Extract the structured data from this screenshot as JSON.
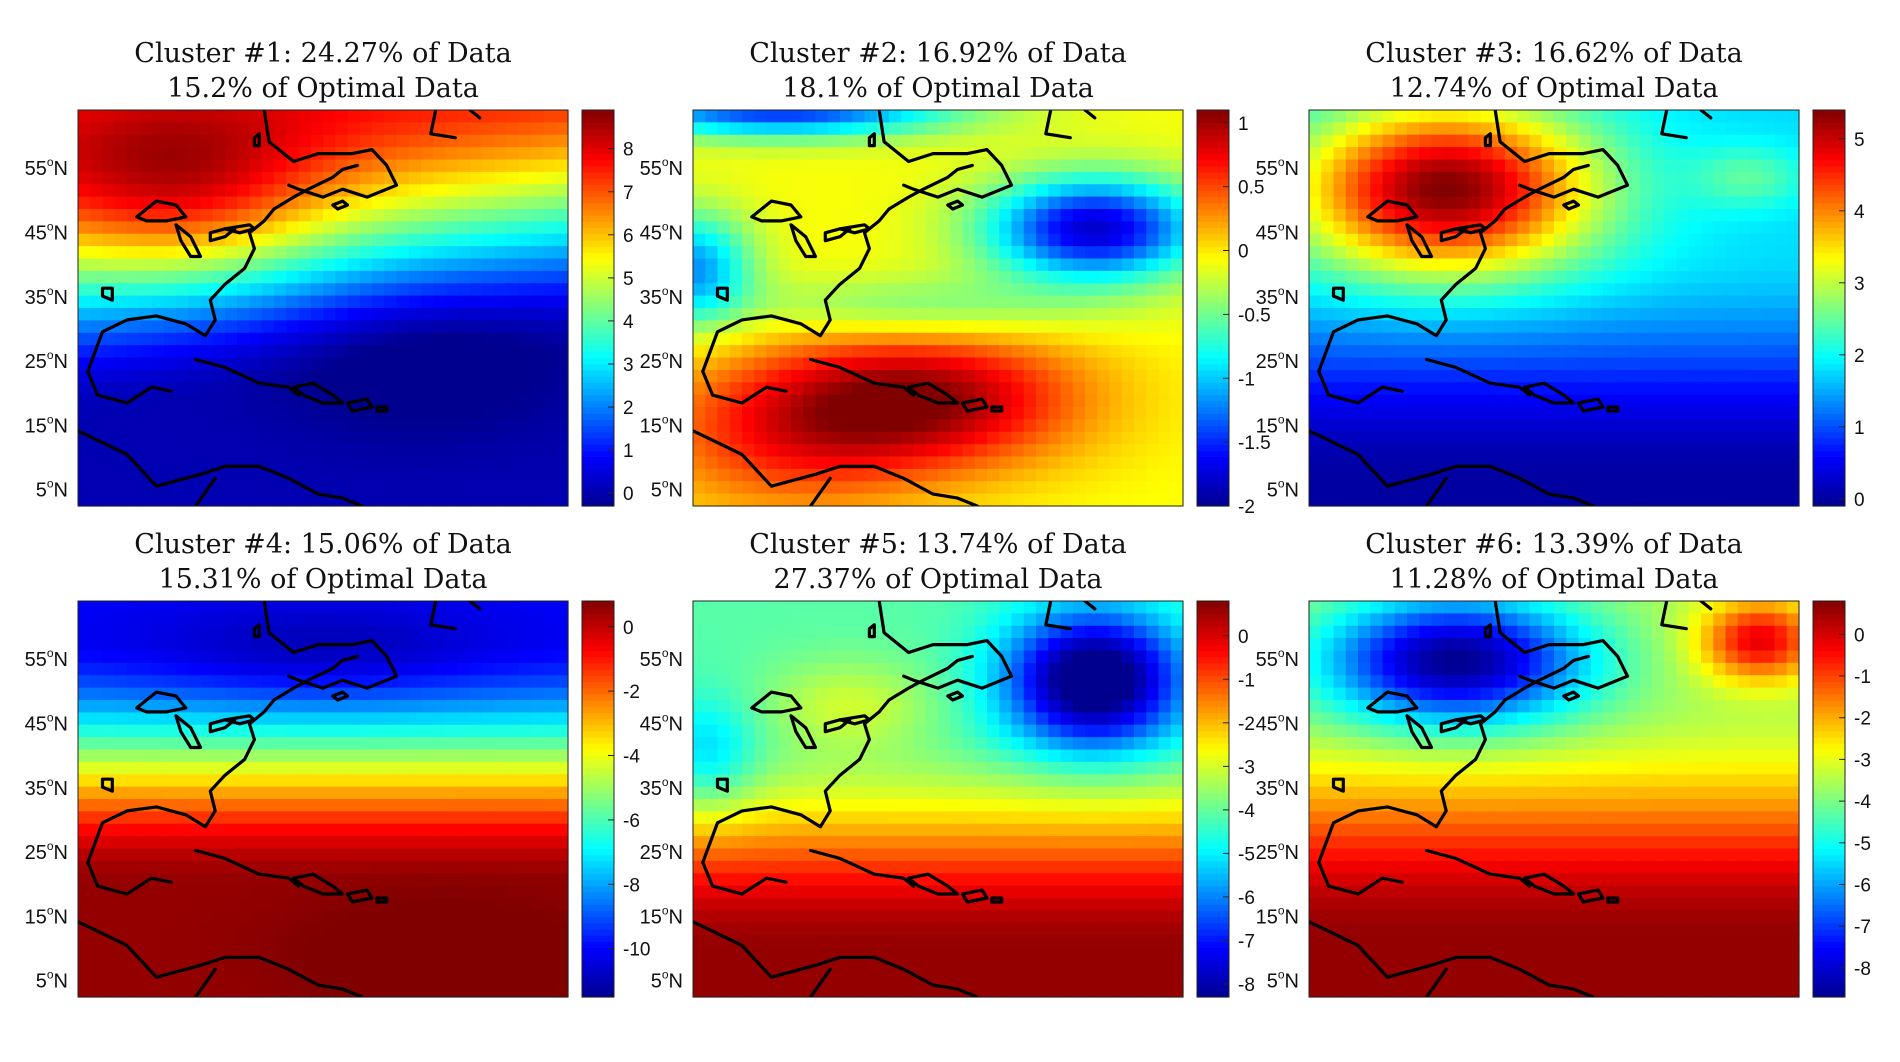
{
  "colormap": [
    "#00008F",
    "#0000FF",
    "#0080FF",
    "#00FFFF",
    "#80FF80",
    "#FFFF00",
    "#FF8000",
    "#FF0000",
    "#800000"
  ],
  "coastline_color": "#000000",
  "lat_ticks": [
    {
      "deg": "55",
      "sup": "o",
      "hem": "N"
    },
    {
      "deg": "45",
      "sup": "o",
      "hem": "N"
    },
    {
      "deg": "35",
      "sup": "o",
      "hem": "N"
    },
    {
      "deg": "25",
      "sup": "o",
      "hem": "N"
    },
    {
      "deg": "15",
      "sup": "o",
      "hem": "N"
    },
    {
      "deg": "5",
      "sup": "o",
      "hem": "N"
    }
  ],
  "chart_data": [
    {
      "type": "heatmap",
      "title_line1": "Cluster #1: 24.27% of Data",
      "title_line2": "15.2% of Optimal Data",
      "colorbar": {
        "min": -0.3,
        "max": 8.9,
        "ticks": [
          0,
          1,
          2,
          3,
          4,
          5,
          6,
          7,
          8
        ],
        "tick_labels": [
          "0",
          "1",
          "2",
          "3",
          "4",
          "5",
          "6",
          "7",
          "8"
        ]
      },
      "lat_range": [
        0,
        62
      ],
      "base_field": "lat_gradient_high_north",
      "features": [
        {
          "name": "max_northeast_us",
          "value": 8.9
        },
        {
          "name": "min_tropical_atlantic",
          "value": -0.3
        }
      ]
    },
    {
      "type": "heatmap",
      "title_line1": "Cluster #2: 16.92% of Data",
      "title_line2": "18.1% of Optimal Data",
      "colorbar": {
        "min": -2.0,
        "max": 1.1,
        "ticks": [
          -2,
          -1.5,
          -1,
          -0.5,
          0,
          0.5,
          1
        ],
        "tick_labels": [
          "-2",
          "-1.5",
          "-1",
          "-0.5",
          "0",
          "0.5",
          "1"
        ]
      },
      "lat_range": [
        0,
        62
      ],
      "base_field": "positive_south_negative_northeast",
      "features": [
        {
          "name": "max_caribbean",
          "value": 1.1
        },
        {
          "name": "min_north_atlantic",
          "value": -2.0
        }
      ]
    },
    {
      "type": "heatmap",
      "title_line1": "Cluster #3: 16.62% of Data",
      "title_line2": "12.74% of Optimal Data",
      "colorbar": {
        "min": -0.1,
        "max": 5.4,
        "ticks": [
          0,
          1,
          2,
          3,
          4,
          5
        ],
        "tick_labels": [
          "0",
          "1",
          "2",
          "3",
          "4",
          "5"
        ]
      },
      "lat_range": [
        0,
        62
      ],
      "base_field": "blob_northeast_us",
      "features": [
        {
          "name": "max_great_lakes",
          "value": 5.4
        },
        {
          "name": "min_tropical_atlantic",
          "value": -0.1
        }
      ]
    },
    {
      "type": "heatmap",
      "title_line1": "Cluster #4: 15.06% of Data",
      "title_line2": "15.31% of Optimal Data",
      "colorbar": {
        "min": -11.5,
        "max": 0.8,
        "ticks": [
          -10,
          -8,
          -6,
          -4,
          -2,
          0
        ],
        "tick_labels": [
          "-10",
          "-8",
          "-6",
          "-4",
          "-2",
          "0"
        ]
      },
      "lat_range": [
        0,
        62
      ],
      "base_field": "lat_gradient_low_north",
      "features": [
        {
          "name": "min_northeast_canada",
          "value": -11.5
        },
        {
          "name": "max_tropical_atlantic",
          "value": 0.8
        }
      ]
    },
    {
      "type": "heatmap",
      "title_line1": "Cluster #5: 13.74% of Data",
      "title_line2": "27.37% of Optimal Data",
      "colorbar": {
        "min": -8.3,
        "max": 0.8,
        "ticks": [
          -8,
          -7,
          -6,
          -5,
          -4,
          -3,
          -2,
          -1,
          0
        ],
        "tick_labels": [
          "-8",
          "-7",
          "-6",
          "-5",
          "-4",
          "-3",
          "-2",
          "-1",
          "0"
        ]
      },
      "lat_range": [
        0,
        62
      ],
      "base_field": "lat_gradient_low_north",
      "features": [
        {
          "name": "min_north_atlantic_blob",
          "value": -8.3
        },
        {
          "name": "max_tropical_atlantic",
          "value": 0.8
        }
      ]
    },
    {
      "type": "heatmap",
      "title_line1": "Cluster #6: 13.39% of Data",
      "title_line2": "11.28% of Optimal Data",
      "colorbar": {
        "min": -8.7,
        "max": 0.8,
        "ticks": [
          -8,
          -7,
          -6,
          -5,
          -4,
          -3,
          -2,
          -1,
          0
        ],
        "tick_labels": [
          "-8",
          "-7",
          "-6",
          "-5",
          "-4",
          "-3",
          "-2",
          "-1",
          "0"
        ]
      },
      "lat_range": [
        0,
        62
      ],
      "base_field": "lat_gradient_low_north",
      "features": [
        {
          "name": "min_quebec_labrador",
          "value": -8.7
        },
        {
          "name": "max_tropical_atlantic",
          "value": 0.8
        },
        {
          "name": "secondary_max_northeast_atlantic",
          "value": 0.2
        }
      ]
    }
  ]
}
